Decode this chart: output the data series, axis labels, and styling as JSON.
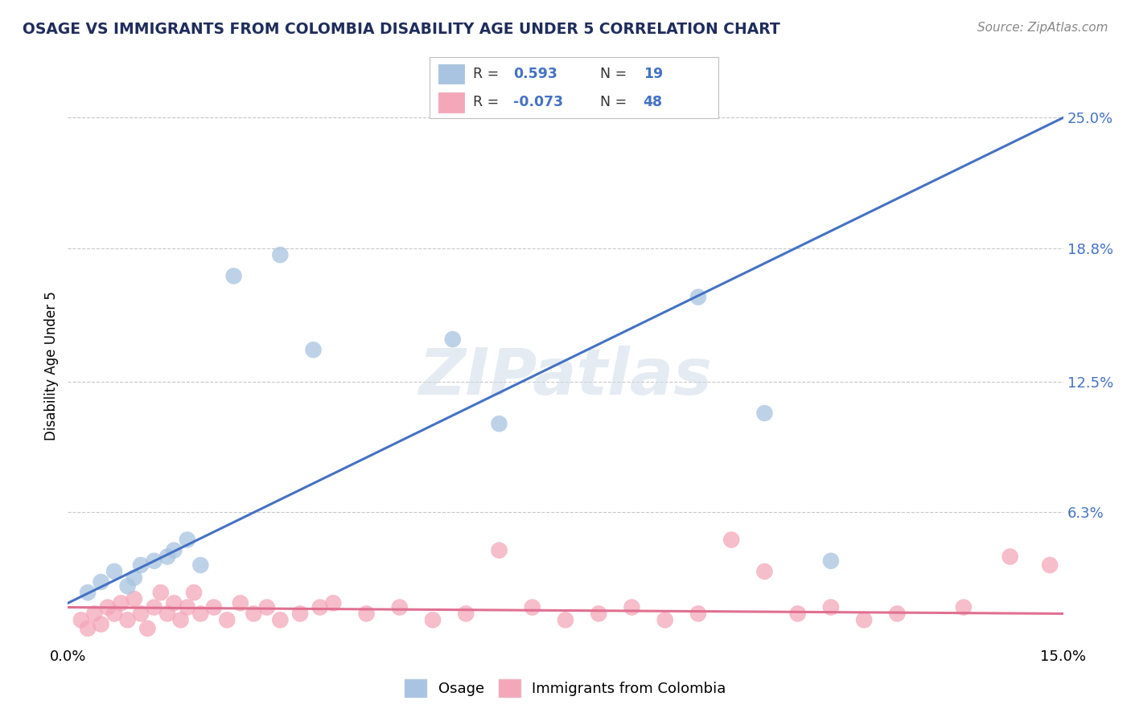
{
  "title": "OSAGE VS IMMIGRANTS FROM COLOMBIA DISABILITY AGE UNDER 5 CORRELATION CHART",
  "source": "Source: ZipAtlas.com",
  "ylabel": "Disability Age Under 5",
  "xlim": [
    0.0,
    15.0
  ],
  "ylim": [
    0.0,
    26.5
  ],
  "y_tick_values_right": [
    6.3,
    12.5,
    18.8,
    25.0
  ],
  "y_tick_labels_right": [
    "6.3%",
    "12.5%",
    "18.8%",
    "25.0%"
  ],
  "grid_color": "#c8c8c8",
  "background_color": "#ffffff",
  "blue_color": "#a8c4e0",
  "pink_color": "#f4a7b9",
  "blue_line_color": "#4472c4",
  "pink_line_color": "#e07090",
  "watermark": "ZIPatlas",
  "title_color": "#1f2d5c",
  "osage_x": [
    0.3,
    0.5,
    0.7,
    0.9,
    1.0,
    1.1,
    1.3,
    1.5,
    1.6,
    1.8,
    2.0,
    2.5,
    3.2,
    3.7,
    5.8,
    6.5,
    9.5,
    10.5,
    11.5
  ],
  "osage_y": [
    2.5,
    3.0,
    3.5,
    2.8,
    3.2,
    3.8,
    4.0,
    4.2,
    4.5,
    5.0,
    3.8,
    17.5,
    18.5,
    14.0,
    14.5,
    10.5,
    16.5,
    11.0,
    4.0
  ],
  "colombia_x": [
    0.2,
    0.3,
    0.4,
    0.5,
    0.6,
    0.7,
    0.8,
    0.9,
    1.0,
    1.1,
    1.2,
    1.3,
    1.4,
    1.5,
    1.6,
    1.7,
    1.8,
    1.9,
    2.0,
    2.2,
    2.4,
    2.6,
    2.8,
    3.0,
    3.2,
    3.5,
    3.8,
    4.0,
    4.5,
    5.0,
    5.5,
    6.0,
    6.5,
    7.0,
    7.5,
    8.0,
    8.5,
    9.0,
    9.5,
    10.0,
    10.5,
    11.0,
    11.5,
    12.0,
    12.5,
    13.5,
    14.2,
    14.8
  ],
  "colombia_y": [
    1.2,
    0.8,
    1.5,
    1.0,
    1.8,
    1.5,
    2.0,
    1.2,
    2.2,
    1.5,
    0.8,
    1.8,
    2.5,
    1.5,
    2.0,
    1.2,
    1.8,
    2.5,
    1.5,
    1.8,
    1.2,
    2.0,
    1.5,
    1.8,
    1.2,
    1.5,
    1.8,
    2.0,
    1.5,
    1.8,
    1.2,
    1.5,
    4.5,
    1.8,
    1.2,
    1.5,
    1.8,
    1.2,
    1.5,
    5.0,
    3.5,
    1.5,
    1.8,
    1.2,
    1.5,
    1.8,
    4.2,
    3.8
  ],
  "blue_line_x0": 0.0,
  "blue_line_y0": 2.0,
  "blue_line_x1": 15.0,
  "blue_line_y1": 25.0,
  "pink_line_x0": 0.0,
  "pink_line_y0": 1.8,
  "pink_line_x1": 15.0,
  "pink_line_y1": 1.5
}
